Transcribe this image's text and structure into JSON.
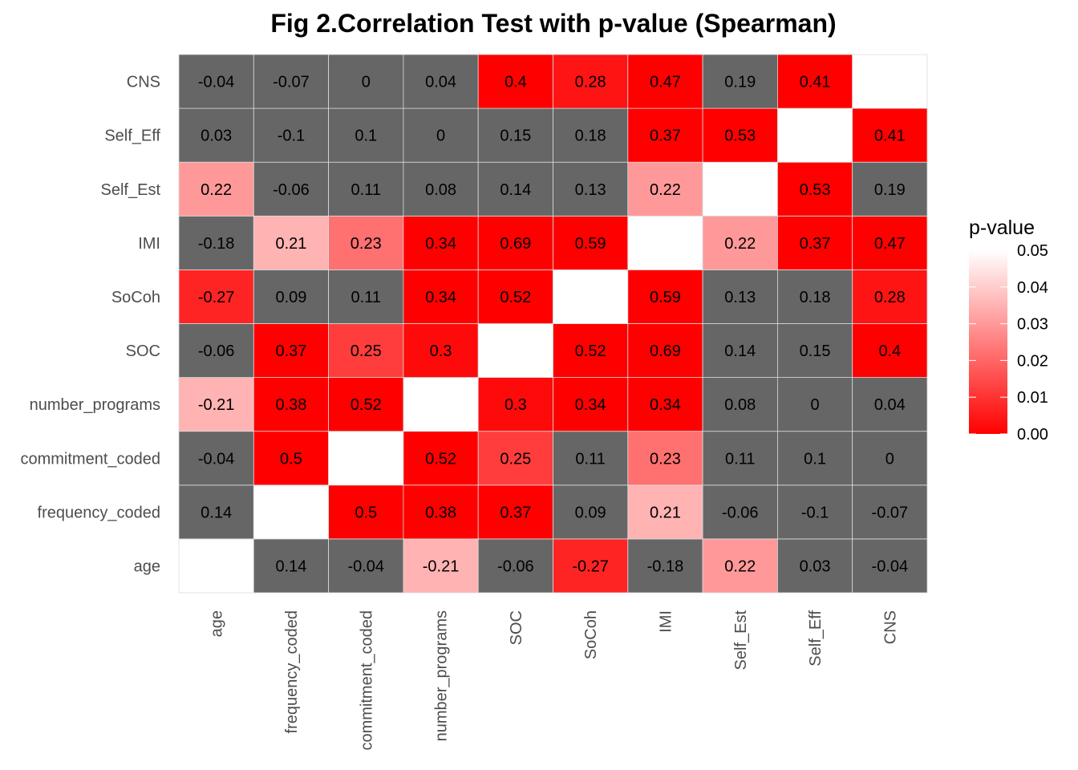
{
  "chart_data": {
    "type": "heatmap",
    "title": "Fig 2.Correlation Test with p-value (Spearman)",
    "variables": [
      "age",
      "frequency_coded",
      "commitment_coded",
      "number_programs",
      "SOC",
      "SoCoh",
      "IMI",
      "Self_Est",
      "Self_Eff",
      "CNS"
    ],
    "correlations": [
      [
        null,
        0.14,
        -0.04,
        -0.21,
        -0.06,
        -0.27,
        -0.18,
        0.22,
        0.03,
        -0.04
      ],
      [
        0.14,
        null,
        0.5,
        0.38,
        0.37,
        0.09,
        0.21,
        -0.06,
        -0.1,
        -0.07
      ],
      [
        -0.04,
        0.5,
        null,
        0.52,
        0.25,
        0.11,
        0.23,
        0.11,
        0.1,
        0
      ],
      [
        -0.21,
        0.38,
        0.52,
        null,
        0.3,
        0.34,
        0.34,
        0.08,
        0,
        0.04
      ],
      [
        -0.06,
        0.37,
        0.25,
        0.3,
        null,
        0.52,
        0.69,
        0.14,
        0.15,
        0.4
      ],
      [
        -0.27,
        0.09,
        0.11,
        0.34,
        0.52,
        null,
        0.59,
        0.13,
        0.18,
        0.28
      ],
      [
        -0.18,
        0.21,
        0.23,
        0.34,
        0.69,
        0.59,
        null,
        0.22,
        0.37,
        0.47
      ],
      [
        0.22,
        -0.06,
        0.11,
        0.08,
        0.14,
        0.13,
        0.22,
        null,
        0.53,
        0.19
      ],
      [
        0.03,
        -0.1,
        0.1,
        0,
        0.15,
        0.18,
        0.37,
        0.53,
        null,
        0.41
      ],
      [
        -0.04,
        -0.07,
        0,
        0.04,
        0.4,
        0.28,
        0.47,
        0.19,
        0.41,
        null
      ]
    ],
    "p_values": [
      [
        null,
        "ns",
        "ns",
        0.035,
        "ns",
        0.007,
        "ns",
        0.03,
        "ns",
        "ns"
      ],
      [
        "ns",
        null,
        0.0,
        0.0,
        0.0,
        "ns",
        0.035,
        "ns",
        "ns",
        "ns"
      ],
      [
        "ns",
        0.0,
        null,
        0.0,
        0.012,
        "ns",
        0.022,
        "ns",
        "ns",
        "ns"
      ],
      [
        0.035,
        0.0,
        0.0,
        null,
        0.002,
        0.0,
        0.0,
        "ns",
        "ns",
        "ns"
      ],
      [
        "ns",
        0.0,
        0.012,
        0.002,
        null,
        0.0,
        0.0,
        "ns",
        "ns",
        0.0
      ],
      [
        0.007,
        "ns",
        "ns",
        0.0,
        0.0,
        null,
        0.0,
        "ns",
        "ns",
        0.004
      ],
      [
        "ns",
        0.035,
        0.022,
        0.0,
        0.0,
        0.0,
        null,
        0.03,
        0.0,
        0.0
      ],
      [
        0.03,
        "ns",
        "ns",
        "ns",
        "ns",
        "ns",
        0.03,
        null,
        0.0,
        "ns"
      ],
      [
        "ns",
        "ns",
        "ns",
        "ns",
        "ns",
        "ns",
        0.0,
        0.0,
        null,
        0.0
      ],
      [
        "ns",
        "ns",
        "ns",
        "ns",
        0.0,
        0.004,
        0.0,
        "ns",
        0.0,
        null
      ]
    ],
    "nonsignificant_color": "#666666",
    "diagonal_color": "#ffffff",
    "legend": {
      "title": "p-value",
      "ticks": [
        "0.05",
        "0.04",
        "0.03",
        "0.02",
        "0.01",
        "0.00"
      ],
      "range": [
        0,
        0.05
      ],
      "low_color": "#ff0000",
      "high_color": "#ffffff",
      "placement": "right"
    },
    "grid": true
  }
}
